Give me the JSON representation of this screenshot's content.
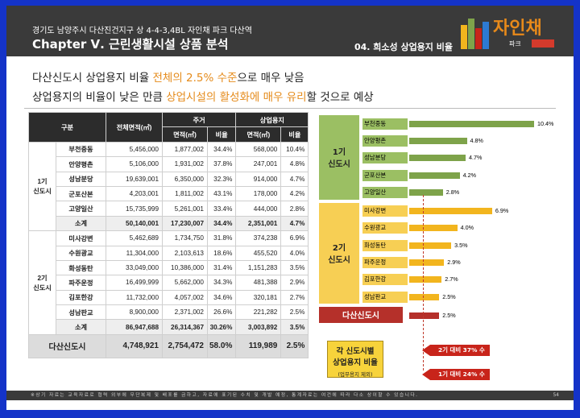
{
  "header": {
    "line1": "경기도 남양주시 다산진건지구 상 4-4-3,4BL 자인채 파크 다산역",
    "line2": "Chapter Ⅴ. 근린생활시설 상품 분석",
    "section": "04. 희소성 상업용지 비율",
    "logo_text": "자인채",
    "logo_tag": "파크"
  },
  "intro": {
    "l1_a": "다산신도시 상업용지 비율 ",
    "l1_hl": "전체의 2.5% 수준",
    "l1_b": "으로 매우 낮음",
    "l2_a": "상업용지의 비율이 낮은 만큼 ",
    "l2_hl1": "상업시설의 활성화에",
    "l2_mid": " ",
    "l2_hl2": "매우 유리",
    "l2_b": "할 것으로 예상"
  },
  "table": {
    "h_gubun": "구분",
    "h_total": "전체면적(㎡)",
    "h_res": "주거",
    "h_com": "상업용지",
    "h_area": "면적(㎡)",
    "h_ratio": "비율",
    "group1": "1기\n신도시",
    "group2": "2기\n신도시",
    "rows1": [
      [
        "부천중동",
        "5,456,000",
        "1,877,002",
        "34.4%",
        "568,000",
        "10.4%"
      ],
      [
        "안양평촌",
        "5,106,000",
        "1,931,002",
        "37.8%",
        "247,001",
        "4.8%"
      ],
      [
        "성남분당",
        "19,639,001",
        "6,350,000",
        "32.3%",
        "914,000",
        "4.7%"
      ],
      [
        "군포산본",
        "4,203,001",
        "1,811,002",
        "43.1%",
        "178,000",
        "4.2%"
      ],
      [
        "고양일산",
        "15,735,999",
        "5,261,001",
        "33.4%",
        "444,000",
        "2.8%"
      ]
    ],
    "sum1": [
      "소계",
      "50,140,001",
      "17,230,007",
      "34.4%",
      "2,351,001",
      "4.7%"
    ],
    "rows2": [
      [
        "미사강변",
        "5,462,689",
        "1,734,750",
        "31.8%",
        "374,238",
        "6.9%"
      ],
      [
        "수원광교",
        "11,304,000",
        "2,103,613",
        "18.6%",
        "455,520",
        "4.0%"
      ],
      [
        "화성동탄",
        "33,049,000",
        "10,386,000",
        "31.4%",
        "1,151,283",
        "3.5%"
      ],
      [
        "파주운정",
        "16,499,999",
        "5,662,000",
        "34.3%",
        "481,388",
        "2.9%"
      ],
      [
        "김포한강",
        "11,732,000",
        "4,057,002",
        "34.6%",
        "320,181",
        "2.7%"
      ],
      [
        "성남판교",
        "8,900,000",
        "2,371,002",
        "26.6%",
        "221,282",
        "2.5%"
      ]
    ],
    "sum2": [
      "소계",
      "86,947,688",
      "26,314,367",
      "30.26%",
      "3,003,892",
      "3.5%"
    ],
    "total": [
      "다산신도시",
      "4,748,921",
      "2,754,472",
      "58.0%",
      "119,989",
      "2.5%"
    ]
  },
  "chart_data": {
    "type": "bar",
    "orientation": "horizontal",
    "groups": [
      {
        "name": "1기\n신도시",
        "color": "#7ea34a",
        "label_color": "#9bbf63",
        "categories": [
          "부천중동",
          "안양평촌",
          "성남분당",
          "군포산본",
          "고양일산"
        ],
        "values": [
          10.4,
          4.8,
          4.7,
          4.2,
          2.8
        ],
        "labels": [
          "10.4%",
          "4.8%",
          "4.7%",
          "4.2%",
          "2.8%"
        ]
      },
      {
        "name": "2기\n신도시",
        "color": "#f2b51e",
        "label_color": "#f7cf54",
        "categories": [
          "미사강변",
          "수원광교",
          "화성동탄",
          "파주운정",
          "김포한강",
          "성남판교"
        ],
        "values": [
          6.9,
          4.0,
          3.5,
          2.9,
          2.7,
          2.5
        ],
        "labels": [
          "6.9%",
          "4.0%",
          "3.5%",
          "2.9%",
          "2.7%",
          "2.5%"
        ]
      },
      {
        "name": "다산신도시",
        "color": "#b5302a",
        "label_color": "#b5302a",
        "categories": [
          ""
        ],
        "values": [
          2.5
        ],
        "labels": [
          "2.5%"
        ]
      }
    ],
    "xlim": [
      0,
      10.4
    ]
  },
  "legend": {
    "title1": "각 신도시별",
    "title2": "상업용지 비율",
    "note": "(업무용지 제외)",
    "arrow1": "2기 대비 37% 수준",
    "arrow2": "1기 대비 24% 수준"
  },
  "footer": {
    "text": "※상기 자료는 교육자료로 협력 외부에 무단복제 및 배포를 금하고, 자료에 표기된 수치 및 개발 예정, 통계자료는 여건에 따라 다소 상이할 수 있습니다.",
    "page": "54"
  }
}
